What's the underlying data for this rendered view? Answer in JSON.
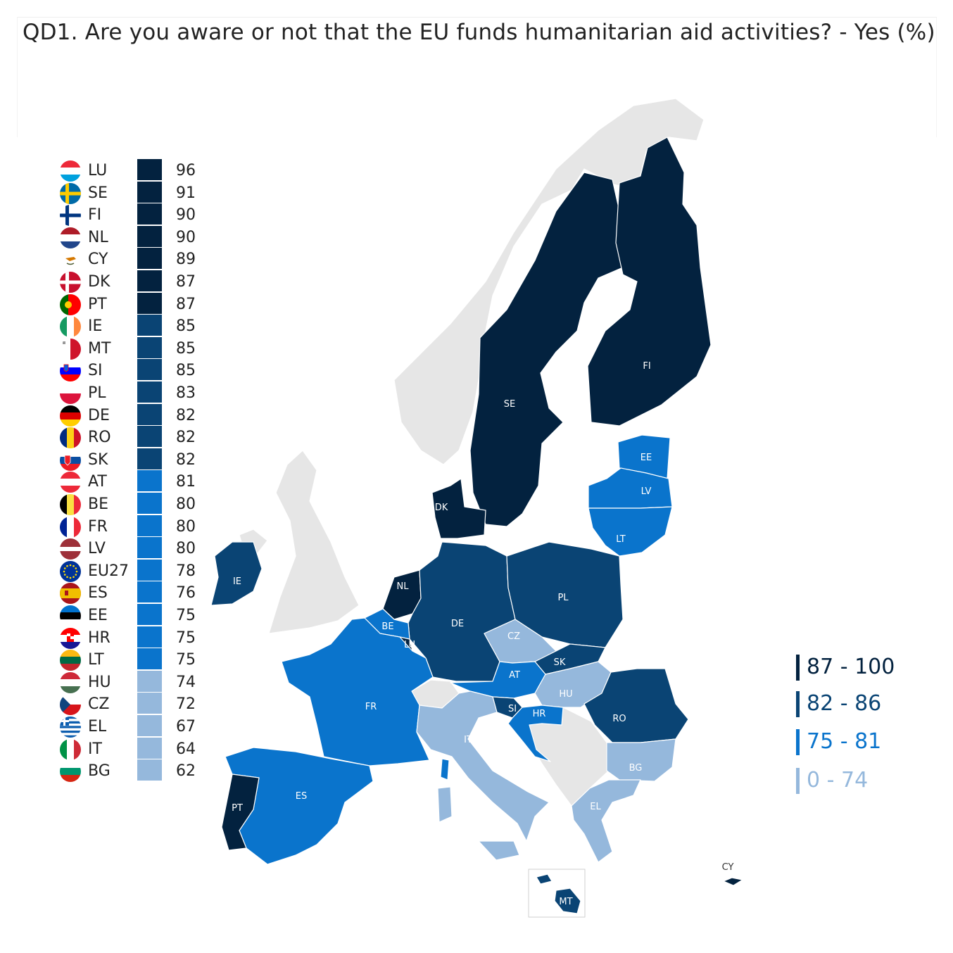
{
  "title": "QD1. Are you aware or not that the EU funds humanitarian aid activities? - Yes (%)",
  "colors": {
    "c1": "#03223f",
    "c2": "#0a4474",
    "c3": "#0a74cc",
    "c4": "#95b8dc",
    "non_eu": "#e6e6e6",
    "border": "#ffffff"
  },
  "ranking": [
    {
      "code": "LU",
      "value": "96",
      "class": "c1",
      "flag": "luxembourg-flag-icon"
    },
    {
      "code": "SE",
      "value": "91",
      "class": "c1",
      "flag": "sweden-flag-icon"
    },
    {
      "code": "FI",
      "value": "90",
      "class": "c1",
      "flag": "finland-flag-icon"
    },
    {
      "code": "NL",
      "value": "90",
      "class": "c1",
      "flag": "netherlands-flag-icon"
    },
    {
      "code": "CY",
      "value": "89",
      "class": "c1",
      "flag": "cyprus-flag-icon"
    },
    {
      "code": "DK",
      "value": "87",
      "class": "c1",
      "flag": "denmark-flag-icon"
    },
    {
      "code": "PT",
      "value": "87",
      "class": "c1",
      "flag": "portugal-flag-icon"
    },
    {
      "code": "IE",
      "value": "85",
      "class": "c2",
      "flag": "ireland-flag-icon"
    },
    {
      "code": "MT",
      "value": "85",
      "class": "c2",
      "flag": "malta-flag-icon"
    },
    {
      "code": "SI",
      "value": "85",
      "class": "c2",
      "flag": "slovenia-flag-icon"
    },
    {
      "code": "PL",
      "value": "83",
      "class": "c2",
      "flag": "poland-flag-icon"
    },
    {
      "code": "DE",
      "value": "82",
      "class": "c2",
      "flag": "germany-flag-icon"
    },
    {
      "code": "RO",
      "value": "82",
      "class": "c2",
      "flag": "romania-flag-icon"
    },
    {
      "code": "SK",
      "value": "82",
      "class": "c2",
      "flag": "slovakia-flag-icon"
    },
    {
      "code": "AT",
      "value": "81",
      "class": "c3",
      "flag": "austria-flag-icon"
    },
    {
      "code": "BE",
      "value": "80",
      "class": "c3",
      "flag": "belgium-flag-icon"
    },
    {
      "code": "FR",
      "value": "80",
      "class": "c3",
      "flag": "france-flag-icon"
    },
    {
      "code": "LV",
      "value": "80",
      "class": "c3",
      "flag": "latvia-flag-icon"
    },
    {
      "code": "EU27",
      "value": "78",
      "class": "c3",
      "flag": "eu-flag-icon"
    },
    {
      "code": "ES",
      "value": "76",
      "class": "c3",
      "flag": "spain-flag-icon"
    },
    {
      "code": "EE",
      "value": "75",
      "class": "c3",
      "flag": "estonia-flag-icon"
    },
    {
      "code": "HR",
      "value": "75",
      "class": "c3",
      "flag": "croatia-flag-icon"
    },
    {
      "code": "LT",
      "value": "75",
      "class": "c3",
      "flag": "lithuania-flag-icon"
    },
    {
      "code": "HU",
      "value": "74",
      "class": "c4",
      "flag": "hungary-flag-icon"
    },
    {
      "code": "CZ",
      "value": "72",
      "class": "c4",
      "flag": "czechia-flag-icon"
    },
    {
      "code": "EL",
      "value": "67",
      "class": "c4",
      "flag": "greece-flag-icon"
    },
    {
      "code": "IT",
      "value": "64",
      "class": "c4",
      "flag": "italy-flag-icon"
    },
    {
      "code": "BG",
      "value": "62",
      "class": "c4",
      "flag": "bulgaria-flag-icon"
    }
  ],
  "legend": [
    {
      "label": "87 - 100",
      "class": "c1"
    },
    {
      "label": "82 - 86",
      "class": "c2"
    },
    {
      "label": "75 - 81",
      "class": "c3"
    },
    {
      "label": "0 - 74",
      "class": "c4"
    }
  ],
  "map_labels": {
    "SE": "SE",
    "FI": "FI",
    "EE": "EE",
    "LV": "LV",
    "LT": "LT",
    "DK": "DK",
    "IE": "IE",
    "NL": "NL",
    "DE": "DE",
    "PL": "PL",
    "BE": "BE",
    "LU": "LU",
    "CZ": "CZ",
    "SK": "SK",
    "AT": "AT",
    "HU": "HU",
    "FR": "FR",
    "SI": "SI",
    "HR": "HR",
    "RO": "RO",
    "IT": "IT",
    "BG": "BG",
    "PT": "PT",
    "ES": "ES",
    "EL": "EL",
    "CY": "CY",
    "MT": "MT"
  }
}
